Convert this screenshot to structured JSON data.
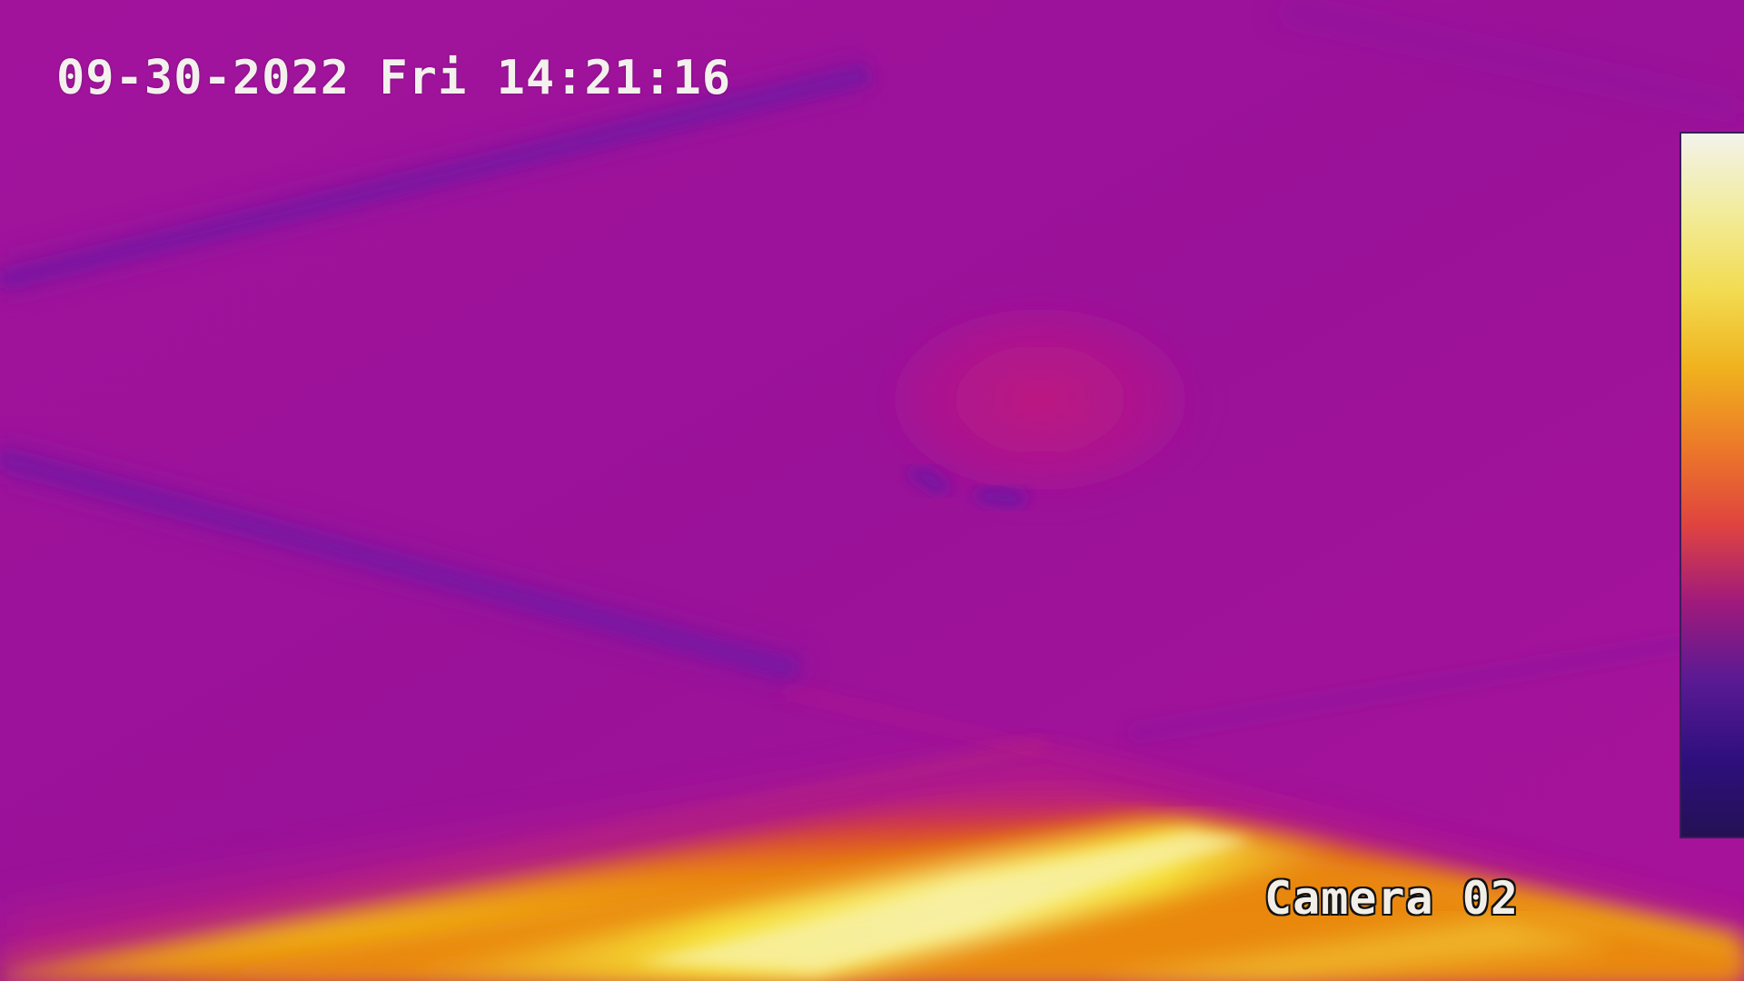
{
  "overlay": {
    "timestamp": "09-30-2022 Fri 14:21:16",
    "camera_label": "Camera 02"
  },
  "palette": {
    "background": "#a2129b",
    "cool": "#7a139e",
    "warm": "#b8167f",
    "hot_orange": "#e87a10",
    "hot_yellow": "#f6e63a",
    "hottest": "#f5f2e4",
    "coldest": "#2a1060"
  },
  "colorbar": {
    "name": "iron-palette-scale",
    "stops": [
      "#f3f2ec",
      "#f2ec9c",
      "#f2dc52",
      "#f0b21e",
      "#ec7a28",
      "#e0443f",
      "#a01a7c",
      "#5a1a94",
      "#2f0f7e",
      "#241154"
    ]
  }
}
